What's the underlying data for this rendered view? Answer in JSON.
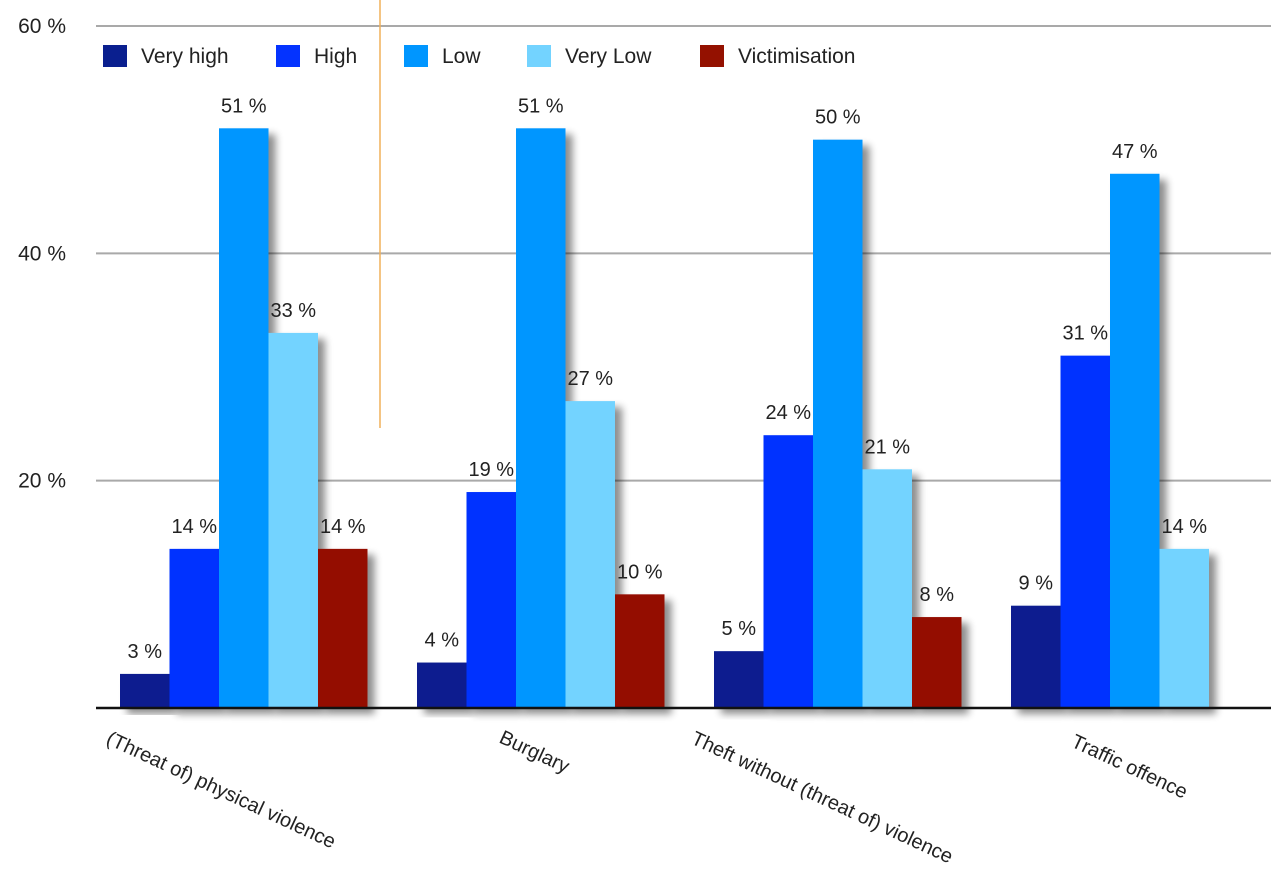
{
  "chart_data": {
    "type": "bar",
    "title": "",
    "xlabel": "",
    "ylabel": "",
    "ylim": [
      0,
      60
    ],
    "y_ticks": [
      {
        "value": 20,
        "label": "20 %"
      },
      {
        "value": 40,
        "label": "40 %"
      },
      {
        "value": 60,
        "label": "60 %"
      }
    ],
    "grid": true,
    "legend_position": "top",
    "categories": [
      "(Threat of) physical violence",
      "Burglary",
      "Theft without (threat of) violence",
      "Traffic offence"
    ],
    "series": [
      {
        "name": "Very high",
        "color": "#0a1f8f",
        "values": [
          3,
          4,
          5,
          9
        ],
        "labels": [
          "3 %",
          "4 %",
          "5 %",
          "9 %"
        ]
      },
      {
        "name": "High",
        "color": "#0433ff",
        "values": [
          14,
          19,
          24,
          31
        ],
        "labels": [
          "14 %",
          "19 %",
          "24 %",
          "31 %"
        ]
      },
      {
        "name": "Low",
        "color": "#0096ff",
        "values": [
          51,
          51,
          50,
          47
        ],
        "labels": [
          "51 %",
          "51 %",
          "50 %",
          "47 %"
        ]
      },
      {
        "name": "Very Low",
        "color": "#73d3ff",
        "values": [
          33,
          27,
          21,
          14
        ],
        "labels": [
          "33 %",
          "27 %",
          "21 %",
          "14 %"
        ]
      },
      {
        "name": "Victimisation",
        "color": "#941100",
        "values": [
          14,
          10,
          8,
          null
        ],
        "labels": [
          "14 %",
          "10 %",
          "8 %",
          ""
        ]
      }
    ]
  }
}
